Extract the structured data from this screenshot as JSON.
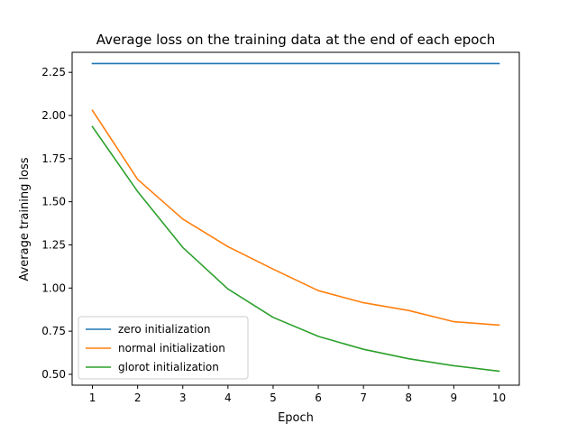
{
  "chart_data": {
    "type": "line",
    "title": "Average loss on the training data at the end of each epoch",
    "xlabel": "Epoch",
    "ylabel": "Average training loss",
    "x": [
      1,
      2,
      3,
      4,
      5,
      6,
      7,
      8,
      9,
      10
    ],
    "xlim": [
      0.55,
      10.45
    ],
    "ylim": [
      0.437,
      2.366
    ],
    "xticks": [
      1,
      2,
      3,
      4,
      5,
      6,
      7,
      8,
      9,
      10
    ],
    "yticks": [
      0.5,
      0.75,
      1.0,
      1.25,
      1.5,
      1.75,
      2.0,
      2.25
    ],
    "ytick_labels": [
      "0.50",
      "0.75",
      "1.00",
      "1.25",
      "1.50",
      "1.75",
      "2.00",
      "2.25"
    ],
    "grid": false,
    "legend_position": "lower-left",
    "series": [
      {
        "name": "zero initialization",
        "color": "#1f77b4",
        "values": [
          2.301,
          2.301,
          2.301,
          2.301,
          2.301,
          2.301,
          2.301,
          2.301,
          2.301,
          2.301
        ]
      },
      {
        "name": "normal initialization",
        "color": "#ff7f0e",
        "values": [
          2.03,
          1.63,
          1.4,
          1.24,
          1.11,
          0.985,
          0.915,
          0.87,
          0.805,
          0.785
        ]
      },
      {
        "name": "glorot initialization",
        "color": "#2ca02c",
        "values": [
          1.935,
          1.56,
          1.235,
          0.995,
          0.83,
          0.72,
          0.645,
          0.59,
          0.55,
          0.518
        ]
      }
    ]
  }
}
